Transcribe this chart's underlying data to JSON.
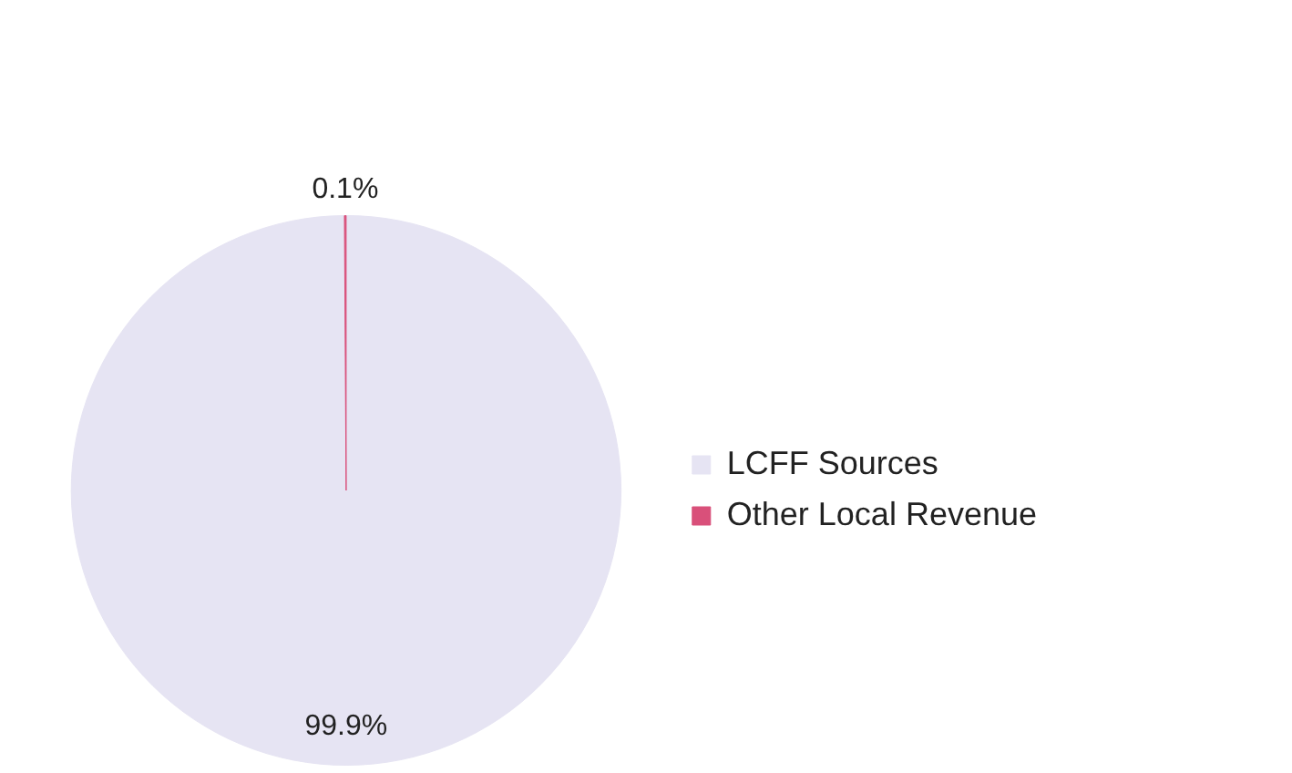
{
  "chart_data": {
    "type": "pie",
    "categories": [
      "LCFF Sources",
      "Other Local Revenue"
    ],
    "values": [
      99.9,
      0.1
    ],
    "colors": [
      "#e6e4f3",
      "#d9507a"
    ],
    "value_labels": [
      "99.9%",
      "0.1%"
    ],
    "legend": "right"
  }
}
